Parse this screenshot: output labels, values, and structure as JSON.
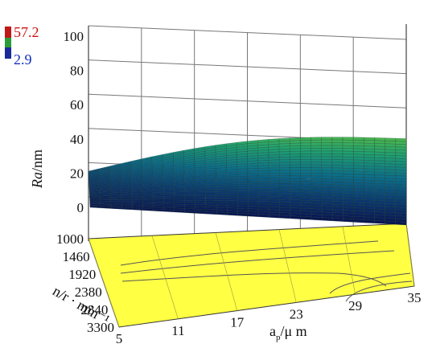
{
  "chart_data": {
    "type": "surface3d",
    "colorbar": {
      "max_label": "57.2",
      "min_label": "2.9",
      "max": 57.2,
      "min": 2.9,
      "max_color": "#d01010",
      "min_color": "#1030c0"
    },
    "z_axis": {
      "label_italic": "Ra",
      "label_unit": "/nm",
      "ticks": [
        "0",
        "20",
        "40",
        "60",
        "80",
        "100"
      ],
      "range": [
        0,
        100
      ]
    },
    "x_axis": {
      "label_main": "a",
      "label_sub": "p",
      "label_unit": "/μ m",
      "ticks": [
        "5",
        "11",
        "17",
        "23",
        "29",
        "35"
      ],
      "range": [
        5,
        35
      ]
    },
    "y_axis": {
      "label": "n/r · min⁻¹",
      "ticks": [
        "1000",
        "1460",
        "1920",
        "2380",
        "2840",
        "3300"
      ],
      "range": [
        1000,
        3300
      ]
    },
    "surface": {
      "ap": [
        5,
        35
      ],
      "n": [
        1000,
        3300
      ],
      "ra_grid": [
        [
          15,
          42
        ],
        [
          0,
          0
        ]
      ],
      "note_colors": [
        "#0a1550",
        "#0b3a70",
        "#0c6e8a",
        "#20a070",
        "#5ec040"
      ]
    },
    "contour_plane_color": "#ffff44"
  }
}
